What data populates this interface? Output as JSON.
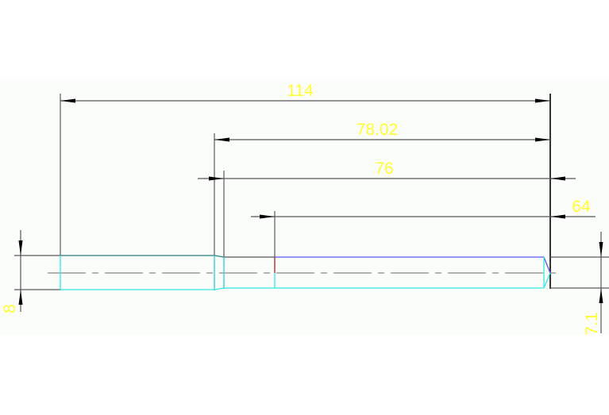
{
  "drawing": {
    "dimensions": [
      {
        "id": "overall-length",
        "value": "114"
      },
      {
        "id": "length-78",
        "value": "78.02"
      },
      {
        "id": "length-76",
        "value": "76"
      },
      {
        "id": "length-64",
        "value": "64"
      },
      {
        "id": "diameter-large",
        "value": "8"
      },
      {
        "id": "diameter-small",
        "value": "7.1"
      }
    ],
    "colors": {
      "background": "#fbfdfb",
      "dimension_text": "#ffff33",
      "outline_cyan": "#33e6e6",
      "outline_teal": "#2a8080",
      "outline_blue": "#5555ee",
      "marker_red": "#aa2222",
      "centerline": "#999999"
    }
  }
}
